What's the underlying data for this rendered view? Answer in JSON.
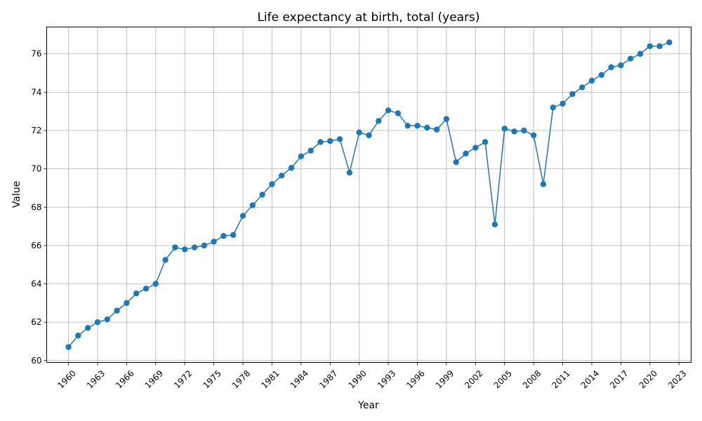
{
  "chart_data": {
    "type": "line",
    "title": "Life expectancy at birth, total (years)",
    "xlabel": "Year",
    "ylabel": "Value",
    "xlim": [
      1957.75,
      2024.25
    ],
    "ylim": [
      59.9,
      77.4
    ],
    "grid": true,
    "x_ticks": [
      1960,
      1963,
      1966,
      1969,
      1972,
      1975,
      1978,
      1981,
      1984,
      1987,
      1990,
      1993,
      1996,
      1999,
      2002,
      2005,
      2008,
      2011,
      2014,
      2017,
      2020,
      2023
    ],
    "y_ticks": [
      60,
      62,
      64,
      66,
      68,
      70,
      72,
      74,
      76
    ],
    "series": [
      {
        "color": "#1f77b4",
        "marker": "circle",
        "x": [
          1960,
          1961,
          1962,
          1963,
          1964,
          1965,
          1966,
          1967,
          1968,
          1969,
          1970,
          1971,
          1972,
          1973,
          1974,
          1975,
          1976,
          1977,
          1978,
          1979,
          1980,
          1981,
          1982,
          1983,
          1984,
          1985,
          1986,
          1987,
          1988,
          1989,
          1990,
          1991,
          1992,
          1993,
          1994,
          1995,
          1996,
          1997,
          1998,
          1999,
          2000,
          2001,
          2002,
          2003,
          2004,
          2005,
          2006,
          2007,
          2008,
          2009,
          2010,
          2011,
          2012,
          2013,
          2014,
          2015,
          2016,
          2017,
          2018,
          2019,
          2020,
          2021,
          2022
        ],
        "values": [
          60.7,
          61.3,
          61.7,
          62.0,
          62.15,
          62.6,
          63.0,
          63.5,
          63.75,
          64.0,
          65.25,
          65.9,
          65.8,
          65.9,
          66.0,
          66.2,
          66.5,
          66.55,
          67.55,
          68.1,
          68.65,
          69.2,
          69.65,
          70.05,
          70.65,
          70.95,
          71.4,
          71.45,
          71.55,
          69.8,
          71.9,
          71.75,
          72.5,
          73.05,
          72.9,
          72.25,
          72.25,
          72.15,
          72.05,
          72.6,
          70.35,
          70.8,
          71.1,
          71.4,
          67.1,
          72.1,
          71.95,
          72.0,
          71.75,
          69.2,
          73.2,
          73.4,
          73.9,
          74.25,
          74.6,
          74.9,
          75.3,
          75.4,
          75.75,
          76.0,
          76.4,
          76.4,
          76.6
        ]
      }
    ]
  }
}
